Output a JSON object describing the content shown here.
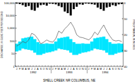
{
  "chart_data": {
    "type": "line",
    "title": "SHELL CREEK NR COLUMBUS, NE",
    "y_label": "DISCHARGE, IN CUBIC FEET PER SECOND",
    "y2_label": "PRECIPITATION, IN INCHES",
    "categories": [
      "J",
      "F",
      "M",
      "A",
      "M",
      "J",
      "J",
      "A",
      "S",
      "O",
      "N",
      "D",
      "J",
      "F",
      "M",
      "A",
      "M",
      "J",
      "J",
      "A",
      "S",
      "O",
      "N",
      "D",
      "J",
      "F",
      "M",
      "A",
      "M",
      "J",
      "J",
      "A",
      "S",
      "O",
      "N",
      "D"
    ],
    "year_labels": [
      "1992",
      "1993",
      "1994"
    ],
    "log": "y",
    "grid": false,
    "ylim": [
      1,
      100000
    ],
    "yticks": [
      {
        "value": 1,
        "label": "1"
      },
      {
        "value": 10,
        "label": "10"
      },
      {
        "value": 100,
        "label": "100"
      },
      {
        "value": 1000,
        "label": "1,000"
      },
      {
        "value": 10000,
        "label": "10,000"
      },
      {
        "value": 100000,
        "label": "100,000"
      }
    ],
    "y2lim": [
      40,
      0
    ],
    "y2ticks": [
      0,
      10,
      20,
      30,
      40
    ],
    "series": [
      {
        "type": "band",
        "color": "#00e5ff",
        "lower": [
          15,
          18,
          25,
          22,
          20,
          18,
          12,
          8,
          8,
          10,
          12,
          13,
          15,
          18,
          25,
          22,
          20,
          18,
          12,
          8,
          8,
          10,
          12,
          13,
          15,
          18,
          25,
          22,
          20,
          18,
          12,
          8,
          8,
          10,
          12,
          13
        ],
        "values": [
          60,
          90,
          160,
          180,
          200,
          220,
          140,
          80,
          60,
          60,
          65,
          60,
          60,
          90,
          160,
          180,
          200,
          220,
          140,
          80,
          60,
          60,
          65,
          60,
          60,
          90,
          160,
          180,
          200,
          220,
          140,
          80,
          60,
          60,
          65,
          60
        ]
      },
      {
        "type": "line",
        "color": "#555555",
        "values": [
          40,
          55,
          90,
          70,
          120,
          400,
          300,
          150,
          60,
          80,
          120,
          90,
          80,
          150,
          600,
          400,
          900,
          1500,
          3000,
          1200,
          300,
          200,
          180,
          150,
          120,
          200,
          500,
          300,
          800,
          1800,
          600,
          250,
          120,
          100,
          110,
          90
        ]
      },
      {
        "type": "bar",
        "axis": "y2",
        "color": "#000000",
        "values": [
          0.5,
          0.8,
          1.5,
          2.5,
          2.0,
          4.5,
          5.0,
          3.0,
          1.5,
          1.2,
          1.8,
          0.6,
          0.7,
          1.0,
          2.0,
          2.8,
          5.5,
          6.5,
          8.0,
          4.0,
          2.5,
          1.0,
          1.2,
          0.5,
          0.6,
          0.9,
          1.2,
          3.0,
          4.0,
          5.0,
          3.0,
          2.5,
          1.5,
          2.0,
          1.0,
          0.8
        ]
      }
    ]
  }
}
